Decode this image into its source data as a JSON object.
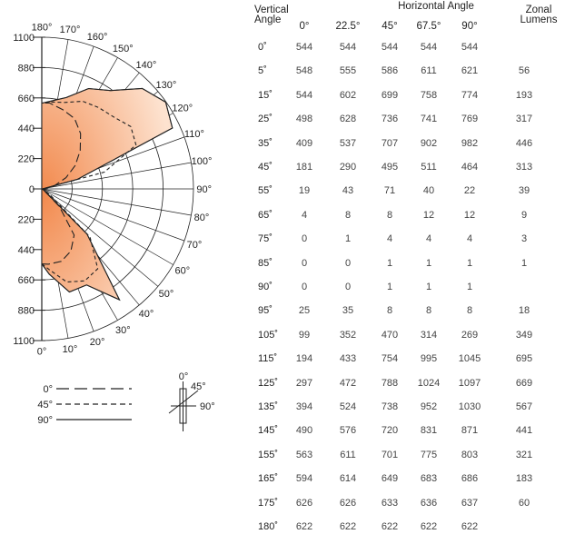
{
  "colors": {
    "fill": "#f28a4e",
    "fill_light": "#fde2cf",
    "line": "#222222"
  },
  "chart_data": {
    "type": "polar",
    "radial_ticks": [
      "1100",
      "880",
      "660",
      "440",
      "220",
      "0",
      "220",
      "440",
      "660",
      "880",
      "1100"
    ],
    "angle_labels_left": [
      "180°",
      "170°",
      "160°",
      "150°",
      "140°",
      "130°",
      "120°",
      "110°",
      "100°",
      "90°",
      "80°",
      "70°",
      "60°",
      "50°",
      "40°",
      "30°",
      "20°",
      "10°",
      "0°"
    ],
    "legend": [
      {
        "label": "0°",
        "style": "long-dash"
      },
      {
        "label": "45°",
        "style": "short-dash"
      },
      {
        "label": "90°",
        "style": "solid"
      }
    ],
    "plane_labels": [
      "0°",
      "45°",
      "90°"
    ],
    "series": [
      {
        "name": "0°",
        "angles": [
          0,
          5,
          15,
          25,
          35,
          45,
          55,
          65,
          75,
          85,
          90,
          95,
          105,
          115,
          125,
          135,
          145,
          155,
          165,
          175,
          180
        ],
        "values": [
          544,
          548,
          544,
          498,
          409,
          181,
          19,
          4,
          0,
          0,
          0,
          25,
          99,
          194,
          297,
          394,
          490,
          563,
          594,
          626,
          622
        ]
      },
      {
        "name": "45°",
        "angles": [
          0,
          5,
          15,
          25,
          35,
          45,
          55,
          65,
          75,
          85,
          90,
          95,
          105,
          115,
          125,
          135,
          145,
          155,
          165,
          175,
          180
        ],
        "values": [
          544,
          586,
          699,
          736,
          707,
          495,
          71,
          8,
          4,
          1,
          1,
          8,
          470,
          754,
          788,
          738,
          720,
          701,
          649,
          633,
          622
        ]
      },
      {
        "name": "90°",
        "angles": [
          0,
          5,
          15,
          25,
          35,
          45,
          55,
          65,
          75,
          85,
          90,
          95,
          105,
          115,
          125,
          135,
          145,
          155,
          165,
          175,
          180
        ],
        "values": [
          544,
          621,
          774,
          769,
          982,
          464,
          22,
          12,
          4,
          1,
          1,
          8,
          269,
          1045,
          1097,
          1030,
          871,
          803,
          686,
          637,
          622
        ]
      }
    ]
  },
  "table": {
    "vertical_angle_header": [
      "Vertical",
      "Angle"
    ],
    "horizontal_angle_header": "Horizontal Angle",
    "zonal_header": [
      "Zonal",
      "Lumens"
    ],
    "columns": [
      "0°",
      "22.5°",
      "45°",
      "67.5°",
      "90°"
    ],
    "rows": [
      {
        "angle": "0˚",
        "v": [
          "544",
          "544",
          "544",
          "544",
          "544"
        ],
        "z": ""
      },
      {
        "angle": "5˚",
        "v": [
          "548",
          "555",
          "586",
          "611",
          "621"
        ],
        "z": "56"
      },
      {
        "angle": "15˚",
        "v": [
          "544",
          "602",
          "699",
          "758",
          "774"
        ],
        "z": "193"
      },
      {
        "angle": "25˚",
        "v": [
          "498",
          "628",
          "736",
          "741",
          "769"
        ],
        "z": "317"
      },
      {
        "angle": "35˚",
        "v": [
          "409",
          "537",
          "707",
          "902",
          "982"
        ],
        "z": "446"
      },
      {
        "angle": "45˚",
        "v": [
          "181",
          "290",
          "495",
          "511",
          "464"
        ],
        "z": "313"
      },
      {
        "angle": "55˚",
        "v": [
          "19",
          "43",
          "71",
          "40",
          "22"
        ],
        "z": "39"
      },
      {
        "angle": "65˚",
        "v": [
          "4",
          "8",
          "8",
          "12",
          "12"
        ],
        "z": "9"
      },
      {
        "angle": "75˚",
        "v": [
          "0",
          "1",
          "4",
          "4",
          "4"
        ],
        "z": "3"
      },
      {
        "angle": "85˚",
        "v": [
          "0",
          "0",
          "1",
          "1",
          "1"
        ],
        "z": "1"
      },
      {
        "angle": "90˚",
        "v": [
          "0",
          "0",
          "1",
          "1",
          "1"
        ],
        "z": ""
      },
      {
        "angle": "95˚",
        "v": [
          "25",
          "35",
          "8",
          "8",
          "8"
        ],
        "z": "18"
      },
      {
        "angle": "105˚",
        "v": [
          "99",
          "352",
          "470",
          "314",
          "269"
        ],
        "z": "349"
      },
      {
        "angle": "115˚",
        "v": [
          "194",
          "433",
          "754",
          "995",
          "1045"
        ],
        "z": "695"
      },
      {
        "angle": "125˚",
        "v": [
          "297",
          "472",
          "788",
          "1024",
          "1097"
        ],
        "z": "669"
      },
      {
        "angle": "135˚",
        "v": [
          "394",
          "524",
          "738",
          "952",
          "1030"
        ],
        "z": "567"
      },
      {
        "angle": "145˚",
        "v": [
          "490",
          "576",
          "720",
          "831",
          "871"
        ],
        "z": "441"
      },
      {
        "angle": "155˚",
        "v": [
          "563",
          "611",
          "701",
          "775",
          "803"
        ],
        "z": "321"
      },
      {
        "angle": "165˚",
        "v": [
          "594",
          "614",
          "649",
          "683",
          "686"
        ],
        "z": "183"
      },
      {
        "angle": "175˚",
        "v": [
          "626",
          "626",
          "633",
          "636",
          "637"
        ],
        "z": "60"
      },
      {
        "angle": "180˚",
        "v": [
          "622",
          "622",
          "622",
          "622",
          "622"
        ],
        "z": ""
      }
    ]
  }
}
